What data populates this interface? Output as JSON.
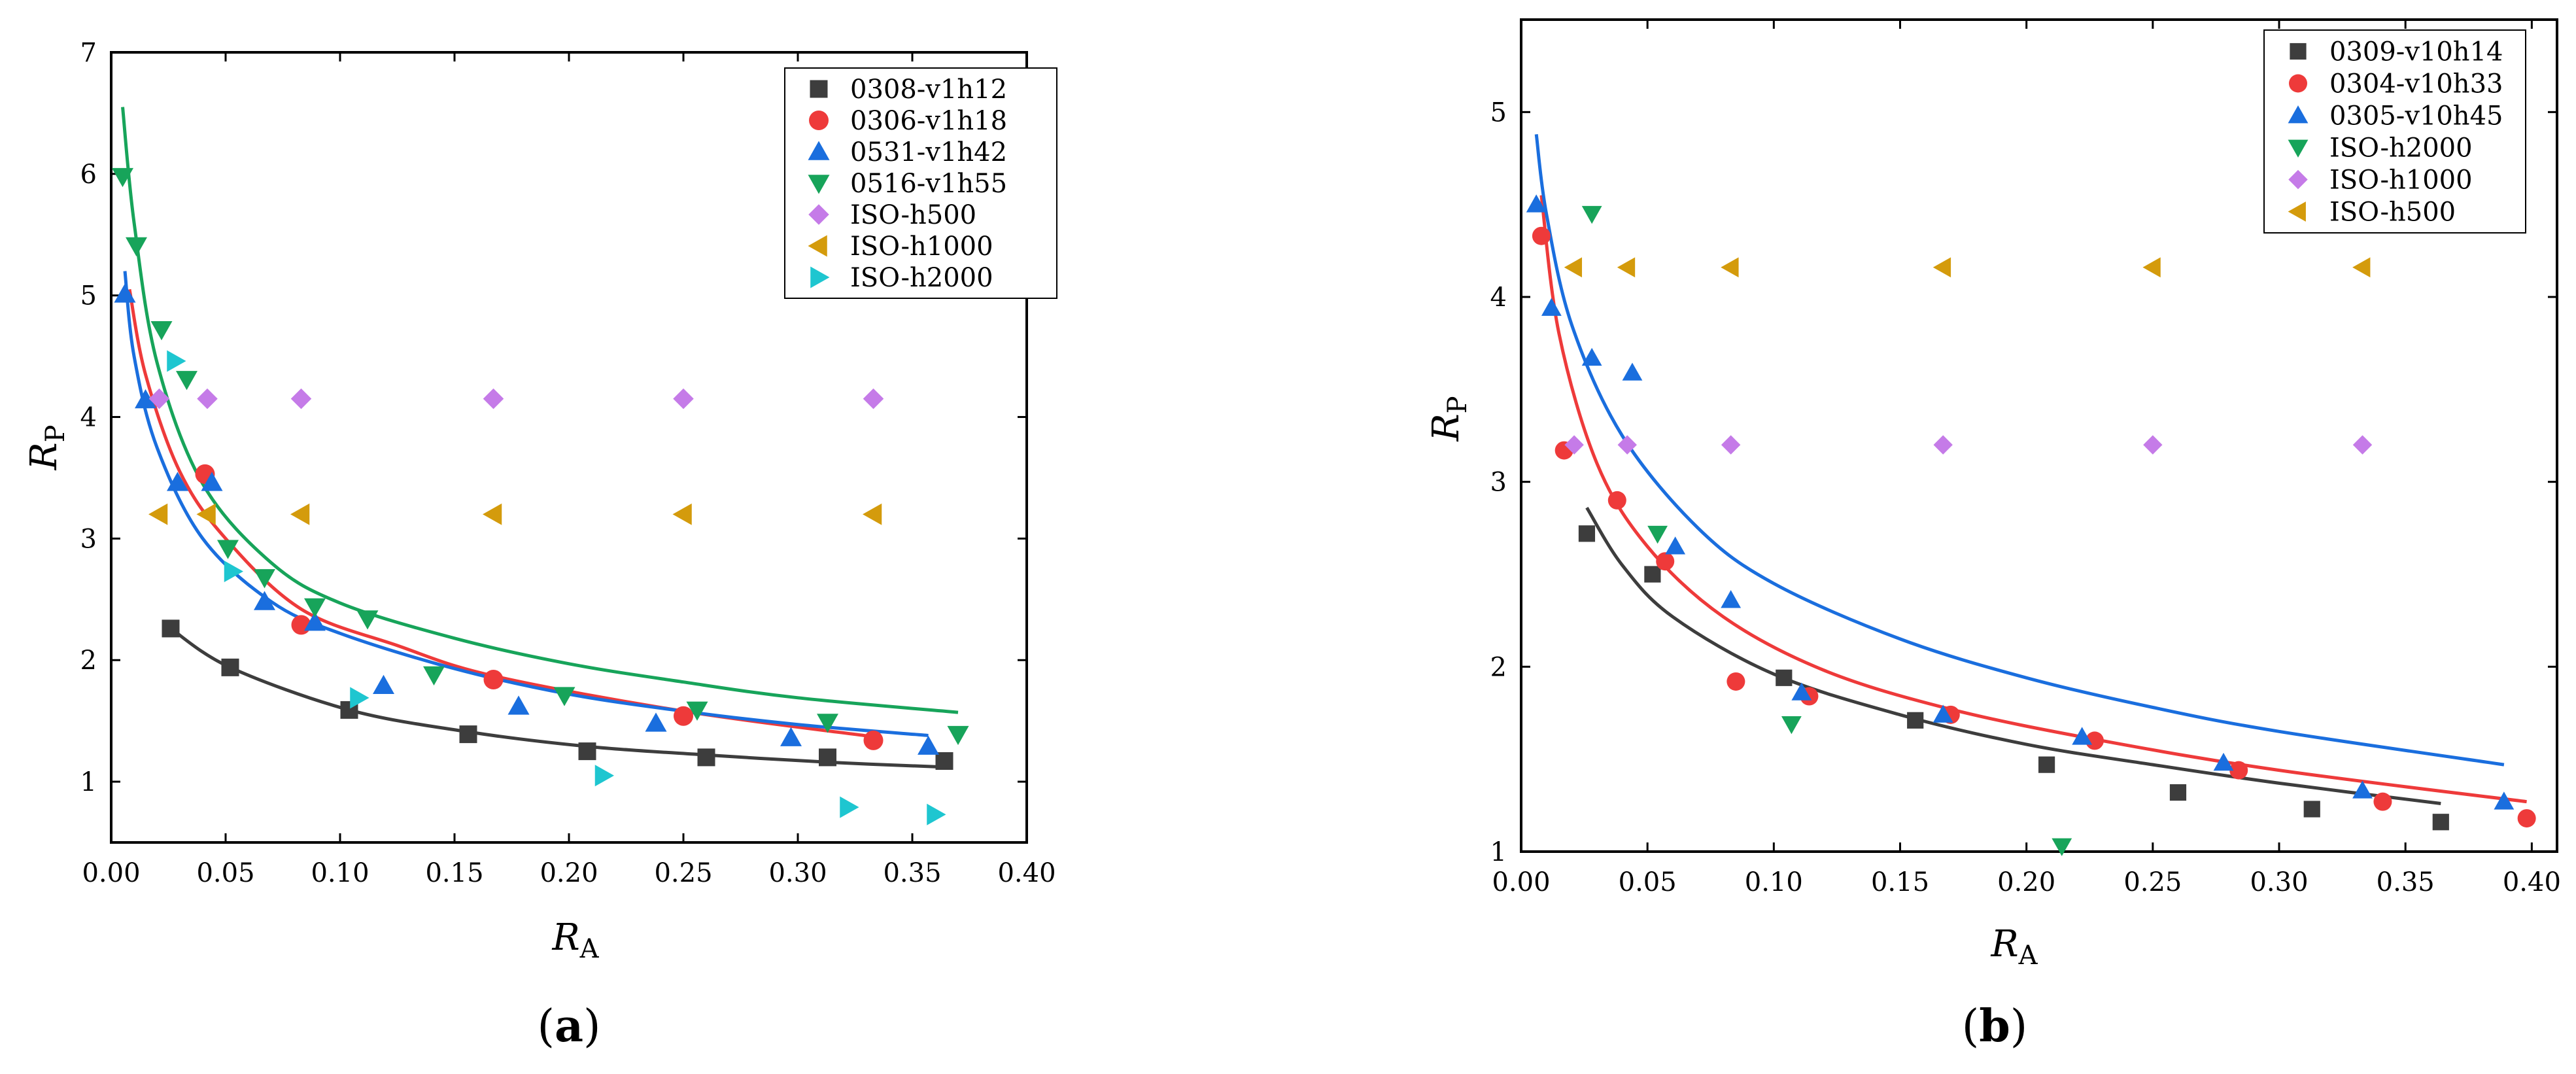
{
  "chart_data": [
    {
      "type": "scatter",
      "panel_label": "a",
      "xlabel": "R",
      "xlabel_sub": "A",
      "ylabel": "R",
      "ylabel_sub": "P",
      "xlim": [
        0,
        0.4
      ],
      "ylim": [
        0.5,
        7
      ],
      "xticks": [
        0,
        0.05,
        0.1,
        0.15,
        0.2,
        0.25,
        0.3,
        0.35,
        0.4
      ],
      "xtick_labels": [
        "0.00",
        "0.05",
        "0.10",
        "0.15",
        "0.20",
        "0.25",
        "0.30",
        "0.35",
        "0.40"
      ],
      "yticks": [
        1,
        2,
        3,
        4,
        5,
        6,
        7
      ],
      "ytick_labels": [
        "1",
        "2",
        "3",
        "4",
        "5",
        "6",
        "7"
      ],
      "legend_position": "top-right",
      "series": [
        {
          "name": "0308-v1h12",
          "marker": "square",
          "color": "#3d3d3d",
          "points": [
            [
              0.026,
              2.26
            ],
            [
              0.052,
              1.94
            ],
            [
              0.104,
              1.59
            ],
            [
              0.156,
              1.39
            ],
            [
              0.208,
              1.25
            ],
            [
              0.26,
              1.2
            ],
            [
              0.313,
              1.2
            ],
            [
              0.364,
              1.17
            ]
          ]
        },
        {
          "name": "0306-v1h18",
          "marker": "circle",
          "color": "#ee3a3a",
          "points": [
            [
              0.041,
              3.53
            ],
            [
              0.083,
              2.29
            ],
            [
              0.167,
              1.84
            ],
            [
              0.25,
              1.54
            ],
            [
              0.333,
              1.34
            ]
          ]
        },
        {
          "name": "0531-v1h42",
          "marker": "triangle-up",
          "color": "#1a6ede",
          "points": [
            [
              0.006,
              5.01
            ],
            [
              0.015,
              4.14
            ],
            [
              0.029,
              3.46
            ],
            [
              0.044,
              3.46
            ],
            [
              0.067,
              2.48
            ],
            [
              0.089,
              2.31
            ],
            [
              0.119,
              1.79
            ],
            [
              0.178,
              1.62
            ],
            [
              0.238,
              1.48
            ],
            [
              0.297,
              1.36
            ],
            [
              0.357,
              1.29
            ]
          ]
        },
        {
          "name": "0516-v1h55",
          "marker": "triangle-down",
          "color": "#17a45a",
          "points": [
            [
              0.005,
              5.98
            ],
            [
              0.011,
              5.41
            ],
            [
              0.022,
              4.72
            ],
            [
              0.033,
              4.31
            ],
            [
              0.051,
              2.92
            ],
            [
              0.067,
              2.68
            ],
            [
              0.089,
              2.44
            ],
            [
              0.112,
              2.34
            ],
            [
              0.141,
              1.88
            ],
            [
              0.198,
              1.71
            ],
            [
              0.256,
              1.59
            ],
            [
              0.313,
              1.49
            ],
            [
              0.37,
              1.39
            ]
          ]
        },
        {
          "name": "ISO-h500",
          "marker": "diamond",
          "color": "#c57be8",
          "points": [
            [
              0.021,
              4.15
            ],
            [
              0.042,
              4.15
            ],
            [
              0.083,
              4.15
            ],
            [
              0.167,
              4.15
            ],
            [
              0.25,
              4.15
            ],
            [
              0.333,
              4.15
            ]
          ]
        },
        {
          "name": "ISO-h1000",
          "marker": "triangle-left",
          "color": "#d49b0c",
          "points": [
            [
              0.021,
              3.2
            ],
            [
              0.042,
              3.2
            ],
            [
              0.083,
              3.2
            ],
            [
              0.167,
              3.2
            ],
            [
              0.25,
              3.2
            ],
            [
              0.333,
              3.2
            ]
          ]
        },
        {
          "name": "ISO-h2000",
          "marker": "triangle-right",
          "color": "#1ec6d0",
          "points": [
            [
              0.028,
              4.46
            ],
            [
              0.053,
              2.73
            ],
            [
              0.108,
              1.69
            ],
            [
              0.215,
              1.05
            ],
            [
              0.322,
              0.79
            ],
            [
              0.36,
              0.73
            ]
          ]
        }
      ],
      "fit_curves": [
        {
          "series": "0308-v1h12",
          "color": "#3d3d3d",
          "x_range": [
            0.026,
            0.364
          ],
          "points": [
            [
              0.026,
              2.26
            ],
            [
              0.052,
              1.94
            ],
            [
              0.104,
              1.59
            ],
            [
              0.156,
              1.41
            ],
            [
              0.208,
              1.29
            ],
            [
              0.26,
              1.22
            ],
            [
              0.313,
              1.16
            ],
            [
              0.364,
              1.12
            ]
          ]
        },
        {
          "series": "0306-v1h18",
          "color": "#ee3a3a",
          "x_range": [
            0.008,
            0.333
          ],
          "points": [
            [
              0.008,
              5.05
            ],
            [
              0.015,
              4.35
            ],
            [
              0.03,
              3.55
            ],
            [
              0.05,
              3.0
            ],
            [
              0.083,
              2.42
            ],
            [
              0.125,
              2.12
            ],
            [
              0.167,
              1.87
            ],
            [
              0.25,
              1.58
            ],
            [
              0.333,
              1.37
            ]
          ]
        },
        {
          "series": "0531-v1h42",
          "color": "#1a6ede",
          "x_range": [
            0.006,
            0.357
          ],
          "points": [
            [
              0.006,
              5.2
            ],
            [
              0.01,
              4.5
            ],
            [
              0.02,
              3.75
            ],
            [
              0.04,
              3.0
            ],
            [
              0.07,
              2.48
            ],
            [
              0.1,
              2.22
            ],
            [
              0.15,
              1.93
            ],
            [
              0.2,
              1.72
            ],
            [
              0.25,
              1.58
            ],
            [
              0.3,
              1.47
            ],
            [
              0.357,
              1.38
            ]
          ]
        },
        {
          "series": "0516-v1h55",
          "color": "#17a45a",
          "x_range": [
            0.005,
            0.37
          ],
          "points": [
            [
              0.005,
              6.55
            ],
            [
              0.01,
              5.6
            ],
            [
              0.02,
              4.45
            ],
            [
              0.04,
              3.45
            ],
            [
              0.07,
              2.8
            ],
            [
              0.1,
              2.47
            ],
            [
              0.15,
              2.18
            ],
            [
              0.2,
              1.97
            ],
            [
              0.25,
              1.82
            ],
            [
              0.3,
              1.69
            ],
            [
              0.37,
              1.57
            ]
          ]
        }
      ]
    },
    {
      "type": "scatter",
      "panel_label": "b",
      "xlabel": "R",
      "xlabel_sub": "A",
      "ylabel": "R",
      "ylabel_sub": "P",
      "xlim": [
        0,
        0.41
      ],
      "ylim": [
        1,
        5.5
      ],
      "xticks": [
        0,
        0.05,
        0.1,
        0.15,
        0.2,
        0.25,
        0.3,
        0.35,
        0.4
      ],
      "xtick_labels": [
        "0.00",
        "0.05",
        "0.10",
        "0.15",
        "0.20",
        "0.25",
        "0.30",
        "0.35",
        "0.40"
      ],
      "yticks": [
        1,
        2,
        3,
        4,
        5
      ],
      "ytick_labels": [
        "1",
        "2",
        "3",
        "4",
        "5"
      ],
      "legend_position": "top-right",
      "series": [
        {
          "name": "0309-v10h14",
          "marker": "square",
          "color": "#3d3d3d",
          "points": [
            [
              0.026,
              2.72
            ],
            [
              0.052,
              2.5
            ],
            [
              0.104,
              1.94
            ],
            [
              0.156,
              1.71
            ],
            [
              0.208,
              1.47
            ],
            [
              0.26,
              1.32
            ],
            [
              0.313,
              1.23
            ],
            [
              0.364,
              1.16
            ]
          ]
        },
        {
          "name": "0304-v10h33",
          "marker": "circle",
          "color": "#ee3a3a",
          "points": [
            [
              0.008,
              4.33
            ],
            [
              0.017,
              3.17
            ],
            [
              0.038,
              2.9
            ],
            [
              0.057,
              2.57
            ],
            [
              0.085,
              1.92
            ],
            [
              0.114,
              1.84
            ],
            [
              0.17,
              1.74
            ],
            [
              0.227,
              1.6
            ],
            [
              0.284,
              1.44
            ],
            [
              0.341,
              1.27
            ],
            [
              0.398,
              1.18
            ]
          ]
        },
        {
          "name": "0305-v10h45",
          "marker": "triangle-up",
          "color": "#1a6ede",
          "points": [
            [
              0.006,
              4.5
            ],
            [
              0.012,
              3.94
            ],
            [
              0.028,
              3.67
            ],
            [
              0.044,
              3.59
            ],
            [
              0.061,
              2.65
            ],
            [
              0.083,
              2.36
            ],
            [
              0.111,
              1.86
            ],
            [
              0.167,
              1.74
            ],
            [
              0.222,
              1.62
            ],
            [
              0.278,
              1.48
            ],
            [
              0.333,
              1.33
            ],
            [
              0.389,
              1.27
            ]
          ]
        },
        {
          "name": "ISO-h2000",
          "marker": "triangle-down",
          "color": "#17a45a",
          "points": [
            [
              0.028,
              4.45
            ],
            [
              0.054,
              2.72
            ],
            [
              0.107,
              1.69
            ],
            [
              0.214,
              1.03
            ]
          ]
        },
        {
          "name": "ISO-h1000",
          "marker": "diamond",
          "color": "#c57be8",
          "points": [
            [
              0.021,
              3.2
            ],
            [
              0.042,
              3.2
            ],
            [
              0.083,
              3.2
            ],
            [
              0.167,
              3.2
            ],
            [
              0.25,
              3.2
            ],
            [
              0.333,
              3.2
            ]
          ]
        },
        {
          "name": "ISO-h500",
          "marker": "triangle-left",
          "color": "#d49b0c",
          "points": [
            [
              0.021,
              4.16
            ],
            [
              0.042,
              4.16
            ],
            [
              0.083,
              4.16
            ],
            [
              0.167,
              4.16
            ],
            [
              0.25,
              4.16
            ],
            [
              0.333,
              4.16
            ]
          ]
        }
      ],
      "fit_curves": [
        {
          "series": "0309-v10h14",
          "color": "#3d3d3d",
          "x_range": [
            0.026,
            0.364
          ],
          "points": [
            [
              0.026,
              2.86
            ],
            [
              0.04,
              2.55
            ],
            [
              0.06,
              2.27
            ],
            [
              0.1,
              1.96
            ],
            [
              0.15,
              1.74
            ],
            [
              0.2,
              1.58
            ],
            [
              0.25,
              1.47
            ],
            [
              0.3,
              1.37
            ],
            [
              0.364,
              1.26
            ]
          ]
        },
        {
          "series": "0304-v10h33",
          "color": "#ee3a3a",
          "x_range": [
            0.008,
            0.398
          ],
          "points": [
            [
              0.008,
              4.55
            ],
            [
              0.015,
              3.8
            ],
            [
              0.03,
              3.1
            ],
            [
              0.05,
              2.65
            ],
            [
              0.08,
              2.27
            ],
            [
              0.12,
              1.98
            ],
            [
              0.17,
              1.77
            ],
            [
              0.23,
              1.6
            ],
            [
              0.3,
              1.44
            ],
            [
              0.398,
              1.27
            ]
          ]
        },
        {
          "series": "0305-v10h45",
          "color": "#1a6ede",
          "x_range": [
            0.006,
            0.389
          ],
          "points": [
            [
              0.006,
              4.88
            ],
            [
              0.01,
              4.45
            ],
            [
              0.02,
              3.85
            ],
            [
              0.04,
              3.25
            ],
            [
              0.07,
              2.75
            ],
            [
              0.1,
              2.45
            ],
            [
              0.15,
              2.15
            ],
            [
              0.2,
              1.94
            ],
            [
              0.25,
              1.78
            ],
            [
              0.3,
              1.65
            ],
            [
              0.389,
              1.47
            ]
          ]
        }
      ]
    }
  ]
}
